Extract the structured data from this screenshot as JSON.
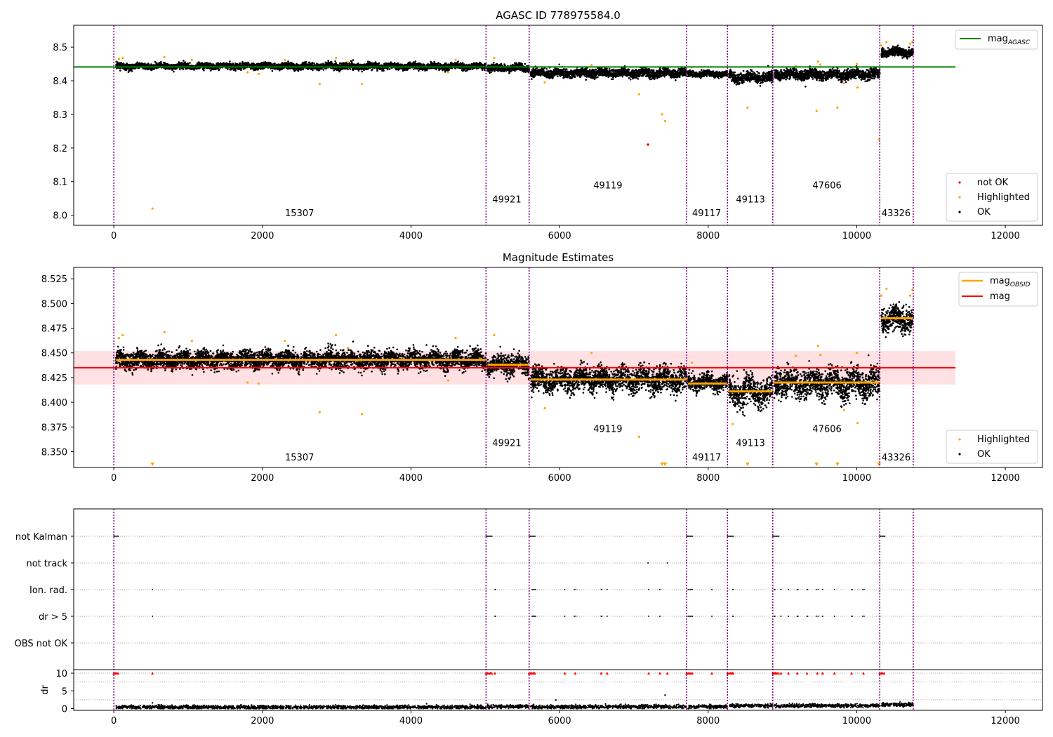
{
  "chart_data": [
    {
      "type": "scatter",
      "title": "AGASC ID 778975584.0",
      "xlim": [
        -540,
        12500
      ],
      "ylim": [
        7.97,
        8.565
      ],
      "xticks": [
        0,
        2000,
        4000,
        6000,
        8000,
        10000,
        12000
      ],
      "xtick_labels": [
        "0",
        "2000",
        "4000",
        "6000",
        "8000",
        "10000",
        "12000"
      ],
      "yticks": [
        8.0,
        8.1,
        8.2,
        8.3,
        8.4,
        8.5
      ],
      "ytick_labels": [
        "8.0",
        "8.1",
        "8.2",
        "8.3",
        "8.4",
        "8.5"
      ],
      "obsid_boundaries": [
        0,
        5010,
        5590,
        7710,
        8260,
        8870,
        10310,
        10760
      ],
      "obsid_labels": [
        {
          "text": "15307",
          "x": 2500,
          "y": 7.997
        },
        {
          "text": "49921",
          "x": 5290,
          "y": 8.038
        },
        {
          "text": "49119",
          "x": 6650,
          "y": 8.08
        },
        {
          "text": "49117",
          "x": 7980,
          "y": 7.997
        },
        {
          "text": "49113",
          "x": 8570,
          "y": 8.038
        },
        {
          "text": "47606",
          "x": 9600,
          "y": 8.08
        },
        {
          "text": "43326",
          "x": 10530,
          "y": 7.997
        }
      ],
      "segment_levels": [
        {
          "start": 30,
          "end": 5010,
          "mean": 8.443,
          "spread": 0.008
        },
        {
          "start": 5030,
          "end": 5590,
          "mean": 8.438,
          "spread": 0.009
        },
        {
          "start": 5610,
          "end": 7710,
          "mean": 8.423,
          "spread": 0.011
        },
        {
          "start": 7730,
          "end": 8260,
          "mean": 8.42,
          "spread": 0.007
        },
        {
          "start": 8280,
          "end": 8870,
          "mean": 8.41,
          "spread": 0.013
        },
        {
          "start": 8890,
          "end": 10310,
          "mean": 8.419,
          "spread": 0.013
        },
        {
          "start": 10330,
          "end": 10760,
          "mean": 8.485,
          "spread": 0.011
        }
      ],
      "mag_agasc": {
        "value": 8.441,
        "x_start": -540,
        "x_end": 11330,
        "color": "#008000"
      },
      "highlighted_points": [
        [
          520,
          8.02
        ],
        [
          2770,
          8.39
        ],
        [
          3340,
          8.39
        ],
        [
          7070,
          8.36
        ],
        [
          7380,
          8.3
        ],
        [
          7420,
          8.28
        ],
        [
          8530,
          8.32
        ],
        [
          9460,
          8.31
        ],
        [
          9740,
          8.32
        ],
        [
          10010,
          8.38
        ],
        [
          10300,
          8.225
        ],
        [
          70,
          8.465
        ],
        [
          120,
          8.468
        ],
        [
          680,
          8.47
        ],
        [
          1050,
          8.462
        ],
        [
          1800,
          8.425
        ],
        [
          1950,
          8.42
        ],
        [
          2300,
          8.462
        ],
        [
          2990,
          8.468
        ],
        [
          3150,
          8.455
        ],
        [
          4500,
          8.425
        ],
        [
          4600,
          8.462
        ],
        [
          5120,
          8.468
        ],
        [
          5800,
          8.395
        ],
        [
          6430,
          8.447
        ],
        [
          7780,
          8.44
        ],
        [
          9180,
          8.443
        ],
        [
          9480,
          8.457
        ],
        [
          9510,
          8.448
        ],
        [
          9830,
          8.392
        ],
        [
          10000,
          8.45
        ],
        [
          10330,
          8.505
        ],
        [
          10400,
          8.515
        ],
        [
          10720,
          8.51
        ],
        [
          10750,
          8.515
        ]
      ],
      "not_ok_points": [
        [
          7190,
          8.21
        ]
      ],
      "legend_top": [
        "mag_AGASC"
      ],
      "legend_bottom": [
        "not OK",
        "Highlighted",
        "OK"
      ],
      "colors": {
        "ok": "#000000",
        "highlighted": "#FFA500",
        "not_ok": "#FF0000",
        "boundary": "#800080"
      }
    },
    {
      "type": "scatter",
      "title": "Magnitude Estimates",
      "xlim": [
        -540,
        12500
      ],
      "ylim": [
        8.334,
        8.5365
      ],
      "xticks": [
        0,
        2000,
        4000,
        6000,
        8000,
        10000,
        12000
      ],
      "xtick_labels": [
        "0",
        "2000",
        "4000",
        "6000",
        "8000",
        "10000",
        "12000"
      ],
      "yticks": [
        8.35,
        8.375,
        8.4,
        8.425,
        8.45,
        8.475,
        8.5,
        8.525
      ],
      "ytick_labels": [
        "8.350",
        "8.375",
        "8.400",
        "8.425",
        "8.450",
        "8.475",
        "8.500",
        "8.525"
      ],
      "obsid_boundaries": [
        0,
        5010,
        5590,
        7710,
        8260,
        8870,
        10310,
        10760
      ],
      "obsid_labels": [
        {
          "text": "15307",
          "x": 2500,
          "y": 8.341
        },
        {
          "text": "49921",
          "x": 5290,
          "y": 8.3555
        },
        {
          "text": "49119",
          "x": 6650,
          "y": 8.37
        },
        {
          "text": "49117",
          "x": 7980,
          "y": 8.341
        },
        {
          "text": "49113",
          "x": 8570,
          "y": 8.3555
        },
        {
          "text": "47606",
          "x": 9600,
          "y": 8.37
        },
        {
          "text": "43326",
          "x": 10530,
          "y": 8.341
        }
      ],
      "segment_levels": [
        {
          "start": 30,
          "end": 5010,
          "mean": 8.443,
          "spread": 0.008
        },
        {
          "start": 5030,
          "end": 5590,
          "mean": 8.438,
          "spread": 0.009
        },
        {
          "start": 5610,
          "end": 7710,
          "mean": 8.423,
          "spread": 0.011
        },
        {
          "start": 7730,
          "end": 8260,
          "mean": 8.42,
          "spread": 0.007
        },
        {
          "start": 8280,
          "end": 8870,
          "mean": 8.41,
          "spread": 0.013
        },
        {
          "start": 8890,
          "end": 10310,
          "mean": 8.419,
          "spread": 0.013
        },
        {
          "start": 10330,
          "end": 10760,
          "mean": 8.485,
          "spread": 0.011
        }
      ],
      "mag_obsid_lines": [
        {
          "start": 30,
          "end": 5010,
          "value": 8.443
        },
        {
          "start": 5030,
          "end": 5590,
          "value": 8.438
        },
        {
          "start": 5610,
          "end": 7710,
          "value": 8.423
        },
        {
          "start": 7730,
          "end": 8260,
          "value": 8.419
        },
        {
          "start": 8280,
          "end": 8870,
          "value": 8.411
        },
        {
          "start": 8890,
          "end": 10310,
          "value": 8.42
        },
        {
          "start": 10330,
          "end": 10760,
          "value": 8.485
        }
      ],
      "mag": {
        "value": 8.435,
        "band": [
          8.418,
          8.452
        ],
        "x_start": -540,
        "x_end": 11330,
        "color": "#FF0000",
        "band_color": "#FFE1E4"
      },
      "highlighted_points": [
        [
          70,
          8.465
        ],
        [
          120,
          8.468
        ],
        [
          680,
          8.471
        ],
        [
          1050,
          8.462
        ],
        [
          1800,
          8.42
        ],
        [
          1950,
          8.419
        ],
        [
          2300,
          8.462
        ],
        [
          2770,
          8.39
        ],
        [
          2990,
          8.468
        ],
        [
          3150,
          8.455
        ],
        [
          3340,
          8.388
        ],
        [
          4500,
          8.422
        ],
        [
          4600,
          8.465
        ],
        [
          5120,
          8.468
        ],
        [
          5800,
          8.394
        ],
        [
          6430,
          8.45
        ],
        [
          7070,
          8.365
        ],
        [
          7780,
          8.44
        ],
        [
          8330,
          8.378
        ],
        [
          9180,
          8.447
        ],
        [
          9480,
          8.457
        ],
        [
          9510,
          8.448
        ],
        [
          9830,
          8.392
        ],
        [
          10000,
          8.45
        ],
        [
          10010,
          8.379
        ],
        [
          10330,
          8.508
        ],
        [
          10400,
          8.515
        ],
        [
          10720,
          8.508
        ],
        [
          10750,
          8.514
        ]
      ],
      "offscale_markers": [
        520,
        7380,
        7420,
        8530,
        9460,
        9740,
        10300
      ],
      "legend_top": [
        "mag_OBSID",
        "mag"
      ],
      "legend_bottom": [
        "Highlighted",
        "OK"
      ],
      "colors": {
        "ok": "#000000",
        "highlighted": "#FFA500",
        "mag_obsid": "#FFA500",
        "boundary": "#800080"
      }
    },
    {
      "type": "scatter",
      "title": "",
      "xlim": [
        -540,
        12500
      ],
      "categories": [
        "not Kalman",
        "not track",
        "Ion. rad.",
        "dr > 5",
        "OBS not OK"
      ],
      "flag_rows": {
        "not Kalman": [
          [
            0,
            60
          ],
          [
            5010,
            5090
          ],
          [
            5590,
            5670
          ],
          [
            7710,
            7790
          ],
          [
            8260,
            8340
          ],
          [
            8870,
            8950
          ],
          [
            10310,
            10380
          ]
        ],
        "not track": [
          [
            7190,
            7190
          ],
          [
            7450,
            7450
          ]
        ],
        "Ion. rad.": [
          [
            520,
            520
          ],
          [
            5130,
            5140
          ],
          [
            5630,
            5680
          ],
          [
            6070,
            6070
          ],
          [
            6200,
            6220
          ],
          [
            6560,
            6570
          ],
          [
            6640,
            6640
          ],
          [
            7200,
            7200
          ],
          [
            7350,
            7350
          ],
          [
            7730,
            7790
          ],
          [
            8050,
            8050
          ],
          [
            8330,
            8340
          ],
          [
            8890,
            8900
          ],
          [
            8980,
            8980
          ],
          [
            9080,
            9080
          ],
          [
            9200,
            9210
          ],
          [
            9330,
            9340
          ],
          [
            9460,
            9480
          ],
          [
            9540,
            9540
          ],
          [
            9700,
            9700
          ],
          [
            9930,
            9940
          ],
          [
            10080,
            10100
          ]
        ],
        "dr > 5": [
          [
            520,
            520
          ],
          [
            5130,
            5140
          ],
          [
            5630,
            5680
          ],
          [
            6070,
            6070
          ],
          [
            6200,
            6220
          ],
          [
            6560,
            6570
          ],
          [
            6640,
            6640
          ],
          [
            7200,
            7200
          ],
          [
            7350,
            7350
          ],
          [
            7730,
            7790
          ],
          [
            8050,
            8050
          ],
          [
            8330,
            8340
          ],
          [
            8890,
            8900
          ],
          [
            8980,
            8980
          ],
          [
            9080,
            9080
          ],
          [
            9200,
            9210
          ],
          [
            9330,
            9340
          ],
          [
            9460,
            9480
          ],
          [
            9540,
            9540
          ],
          [
            9700,
            9700
          ],
          [
            9930,
            9940
          ],
          [
            10080,
            10100
          ]
        ],
        "OBS not OK": []
      },
      "dr": {
        "ylabel": "dr",
        "ylim": [
          -0.5,
          11
        ],
        "yticks": [
          0,
          5,
          10
        ],
        "ytick_labels": [
          "0",
          "5",
          "10"
        ],
        "gridlines": [
          2.5,
          7.5,
          10
        ],
        "clip_value": 10,
        "segment_levels": [
          {
            "start": 30,
            "end": 5010,
            "mean": 0.4
          },
          {
            "start": 5030,
            "end": 5590,
            "mean": 0.6
          },
          {
            "start": 5610,
            "end": 7710,
            "mean": 0.5
          },
          {
            "start": 7730,
            "end": 8260,
            "mean": 0.5
          },
          {
            "start": 8280,
            "end": 8870,
            "mean": 0.8
          },
          {
            "start": 8890,
            "end": 10310,
            "mean": 0.8
          },
          {
            "start": 10330,
            "end": 10760,
            "mean": 1.1
          }
        ],
        "outliers": [
          [
            520,
            1.6
          ],
          [
            5950,
            2.4
          ],
          [
            7420,
            3.8
          ]
        ],
        "clipped_markers": [
          520,
          5130,
          5650,
          6070,
          6210,
          6560,
          6640,
          7200,
          7350,
          7450,
          8050,
          8330,
          8900,
          8980,
          9080,
          9200,
          9330,
          9470,
          9540,
          9700,
          9930,
          10090
        ]
      },
      "xticks": [
        0,
        2000,
        4000,
        6000,
        8000,
        10000,
        12000
      ],
      "xtick_labels": [
        "0",
        "2000",
        "4000",
        "6000",
        "8000",
        "10000",
        "12000"
      ],
      "obsid_boundaries": [
        0,
        5010,
        5590,
        7710,
        8260,
        8870,
        10310,
        10760
      ],
      "colors": {
        "flag": "#000000",
        "clipped": "#FF0000",
        "grid": "#AAAAAA",
        "boundary": "#800080"
      }
    }
  ],
  "legend_labels": {
    "mag_agasc": "mag",
    "mag_agasc_sub": "AGASC",
    "mag_obsid": "mag",
    "mag_obsid_sub": "OBSID",
    "mag": "mag",
    "not_ok": "not OK",
    "highlighted": "Highlighted",
    "ok": "OK"
  }
}
